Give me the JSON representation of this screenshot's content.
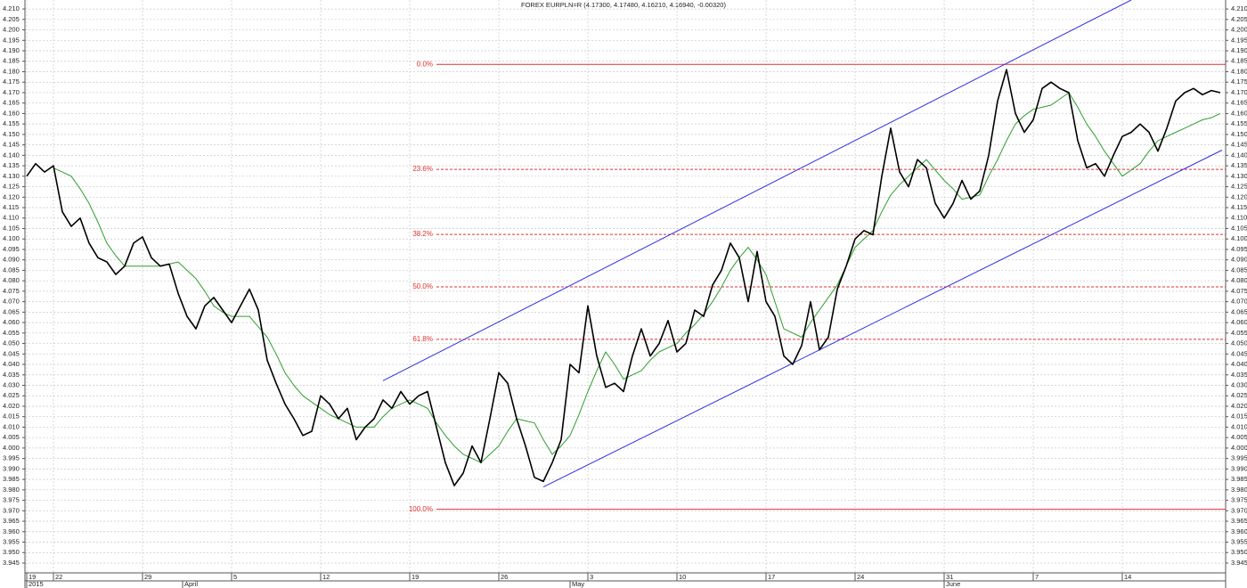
{
  "chart_data": {
    "type": "line",
    "title": "FOREX EURPLN=R (4.17300, 4.17480, 4.16210, 4.16940, -0.00320)",
    "x": [
      0,
      1,
      2,
      3,
      4,
      5,
      6,
      7,
      8,
      9,
      10,
      11,
      12,
      13,
      14,
      15,
      16,
      17,
      18,
      19,
      20,
      21,
      22,
      23,
      24,
      25,
      26,
      27,
      28,
      29,
      30,
      31,
      32,
      33,
      34,
      35,
      36,
      37,
      38,
      39,
      40,
      41,
      42,
      43,
      44,
      45,
      46,
      47,
      48,
      49,
      50,
      51,
      52,
      53,
      54,
      55,
      56,
      57,
      58,
      59,
      60,
      61,
      62,
      63,
      64,
      65,
      66,
      67,
      68,
      69,
      70,
      71,
      72,
      73,
      74,
      75,
      76,
      77,
      78,
      79,
      80,
      81,
      82,
      83,
      84,
      85,
      86,
      87,
      88,
      89,
      90,
      91,
      92,
      93,
      94,
      95,
      96,
      97,
      98,
      99,
      100,
      101,
      102,
      103,
      104,
      105,
      106,
      107,
      108,
      109,
      110,
      111,
      112,
      113,
      114,
      115,
      116,
      117,
      118,
      119,
      120,
      121,
      122,
      123,
      124,
      125,
      126,
      127,
      128,
      129,
      130,
      131,
      132,
      133,
      134
    ],
    "xlim": [
      -0.2,
      134.6
    ],
    "ylim": [
      3.9403,
      4.2143
    ],
    "series": [
      {
        "color": "#000000",
        "values": [
          4.13,
          4.136,
          4.132,
          4.135,
          4.113,
          4.106,
          4.11,
          4.098,
          4.091,
          4.089,
          4.083,
          4.087,
          4.098,
          4.101,
          4.091,
          4.087,
          4.088,
          4.074,
          4.063,
          4.057,
          4.068,
          4.072,
          4.066,
          4.06,
          4.068,
          4.076,
          4.066,
          4.042,
          4.031,
          4.021,
          4.014,
          4.006,
          4.008,
          4.025,
          4.021,
          4.014,
          4.019,
          4.004,
          4.01,
          4.014,
          4.023,
          4.019,
          4.027,
          4.021,
          4.025,
          4.027,
          4.01,
          3.993,
          3.982,
          3.988,
          4.001,
          3.993,
          4.014,
          4.036,
          4.031,
          4.014,
          4.001,
          3.986,
          3.984,
          3.993,
          4.004,
          4.04,
          4.036,
          4.068,
          4.044,
          4.029,
          4.031,
          4.027,
          4.044,
          4.057,
          4.044,
          4.05,
          4.061,
          4.046,
          4.05,
          4.066,
          4.063,
          4.078,
          4.085,
          4.098,
          4.091,
          4.07,
          4.094,
          4.07,
          4.063,
          4.044,
          4.04,
          4.049,
          4.07,
          4.047,
          4.053,
          4.076,
          4.087,
          4.1,
          4.104,
          4.102,
          4.13,
          4.153,
          4.132,
          4.125,
          4.138,
          4.134,
          4.117,
          4.11,
          4.117,
          4.128,
          4.119,
          4.123,
          4.14,
          4.166,
          4.181,
          4.16,
          4.151,
          4.157,
          4.172,
          4.175,
          4.172,
          4.17,
          4.147,
          4.134,
          4.136,
          4.13,
          4.14,
          4.149,
          4.151,
          4.155,
          4.151,
          4.142,
          4.153,
          4.166,
          4.17,
          4.172,
          4.169,
          4.171,
          4.17
        ]
      },
      {
        "color": "#2e9e2e",
        "values": [
          null,
          null,
          null,
          4.134,
          4.132,
          4.13,
          4.124,
          4.117,
          4.108,
          4.098,
          4.092,
          4.087,
          4.087,
          4.087,
          4.087,
          4.087,
          4.088,
          4.089,
          4.085,
          4.081,
          4.075,
          4.068,
          4.065,
          4.063,
          4.063,
          4.063,
          4.058,
          4.053,
          4.045,
          4.036,
          4.03,
          4.025,
          4.022,
          4.019,
          4.016,
          4.014,
          4.012,
          4.01,
          4.01,
          4.01,
          4.015,
          4.019,
          4.021,
          4.023,
          4.021,
          4.019,
          4.012,
          4.006,
          4.001,
          3.997,
          3.995,
          3.993,
          3.997,
          4.001,
          4.008,
          4.014,
          4.013,
          4.012,
          4.004,
          3.997,
          4.001,
          4.006,
          4.016,
          4.027,
          4.037,
          4.046,
          4.04,
          4.033,
          4.035,
          4.037,
          4.042,
          4.046,
          4.048,
          4.05,
          4.055,
          4.059,
          4.064,
          4.07,
          4.077,
          4.085,
          4.091,
          4.096,
          4.09,
          4.083,
          4.07,
          4.057,
          4.055,
          4.053,
          4.06,
          4.066,
          4.072,
          4.078,
          4.087,
          4.096,
          4.1,
          4.104,
          4.113,
          4.121,
          4.126,
          4.13,
          4.134,
          4.138,
          4.133,
          4.128,
          4.124,
          4.119,
          4.12,
          4.121,
          4.13,
          4.138,
          4.147,
          4.155,
          4.159,
          4.162,
          4.163,
          4.164,
          4.167,
          4.17,
          4.163,
          4.155,
          4.149,
          4.142,
          4.136,
          4.13,
          4.133,
          4.136,
          4.142,
          4.147,
          4.149,
          4.151,
          4.153,
          4.155,
          4.157,
          4.158,
          4.16
        ]
      }
    ],
    "yticks": [
      {
        "value": 4.21,
        "label": "4.210"
      },
      4.205,
      {
        "value": 4.2,
        "label": "4.200"
      },
      4.195,
      {
        "value": 4.19,
        "label": "4.190"
      },
      4.185,
      {
        "value": 4.18,
        "label": "4.180"
      },
      4.175,
      {
        "value": 4.17,
        "label": "4.170"
      },
      4.165,
      {
        "value": 4.16,
        "label": "4.160"
      },
      4.155,
      {
        "value": 4.15,
        "label": "4.150"
      },
      4.145,
      {
        "value": 4.14,
        "label": "4.140"
      },
      4.135,
      {
        "value": 4.13,
        "label": "4.130"
      },
      4.125,
      {
        "value": 4.12,
        "label": "4.120"
      },
      4.115,
      {
        "value": 4.11,
        "label": "4.110"
      },
      4.105,
      {
        "value": 4.1,
        "label": "4.100"
      },
      4.095,
      {
        "value": 4.09,
        "label": "4.090"
      },
      4.085,
      {
        "value": 4.08,
        "label": "4.080"
      },
      4.075,
      {
        "value": 4.07,
        "label": "4.070"
      },
      4.065,
      {
        "value": 4.06,
        "label": "4.060"
      },
      4.055,
      {
        "value": 4.05,
        "label": "4.050"
      },
      4.045,
      {
        "value": 4.04,
        "label": "4.040"
      },
      4.035,
      {
        "value": 4.03,
        "label": "4.030"
      },
      4.025,
      {
        "value": 4.02,
        "label": "4.020"
      },
      4.015,
      {
        "value": 4.01,
        "label": "4.010"
      },
      4.005,
      {
        "value": 4.0,
        "label": "4.000"
      },
      3.995,
      {
        "value": 3.99,
        "label": "3.990"
      },
      3.985,
      {
        "value": 3.98,
        "label": "3.980"
      },
      3.975,
      {
        "value": 3.97,
        "label": "3.970"
      },
      3.965,
      {
        "value": 3.96,
        "label": "3.960"
      },
      3.955,
      {
        "value": 3.95,
        "label": "3.950"
      },
      3.945
    ],
    "xticks": [
      {
        "value": 0,
        "label": "19"
      },
      {
        "value": 3,
        "label": "22"
      },
      {
        "value": 13,
        "label": "29"
      },
      {
        "value": 23,
        "label": "5"
      },
      {
        "value": 33,
        "label": "12"
      },
      {
        "value": 43,
        "label": "19"
      },
      {
        "value": 53,
        "label": "26"
      },
      {
        "value": 63,
        "label": "3"
      },
      {
        "value": 73,
        "label": "10"
      },
      {
        "value": 83,
        "label": "17"
      },
      {
        "value": 93,
        "label": "24"
      },
      {
        "value": 103,
        "label": "31"
      },
      {
        "value": 113,
        "label": "7"
      },
      {
        "value": 123,
        "label": "14"
      }
    ],
    "month_labels": [
      {
        "value": 0,
        "label": "2015"
      },
      {
        "value": 17.5,
        "label": "April"
      },
      {
        "value": 61,
        "label": "May"
      },
      {
        "value": 103,
        "label": "June"
      }
    ],
    "grid": true,
    "fibonacci": {
      "color": "#e03030",
      "start": 46,
      "levels": [
        {
          "label": "0.0%",
          "value": 4.1835
        },
        {
          "label": "23.6%",
          "value": 4.1333
        },
        {
          "label": "38.2%",
          "value": 4.1022
        },
        {
          "label": "50.0%",
          "value": 4.0771
        },
        {
          "label": "61.8%",
          "value": 4.052
        },
        {
          "label": "100.0%",
          "value": 3.9707
        }
      ]
    },
    "trendlines": [
      {
        "color": "#3030e0",
        "x": [
          40,
          124
        ],
        "y": [
          4.0322,
          4.2143
        ]
      },
      {
        "color": "#3030e0",
        "x": [
          58,
          134.2
        ],
        "y": [
          3.9814,
          4.1425
        ]
      }
    ]
  }
}
